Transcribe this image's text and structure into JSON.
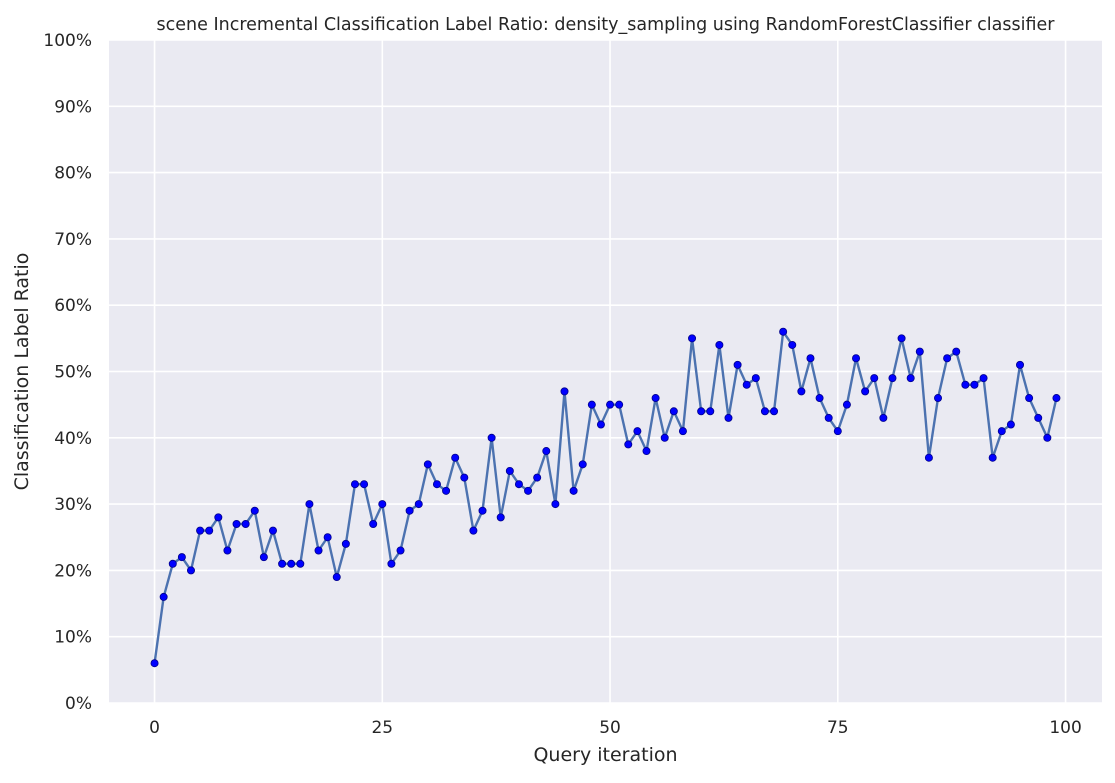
{
  "chart_data": {
    "type": "line",
    "title": "scene Incremental Classification Label Ratio: density_sampling using RandomForestClassifier classifier",
    "xlabel": "Query iteration",
    "ylabel": "Classification Label Ratio",
    "xlim": [
      -5,
      104
    ],
    "ylim": [
      0,
      1
    ],
    "x_ticks": [
      0,
      25,
      50,
      75,
      100
    ],
    "x_tick_labels": [
      "0",
      "25",
      "50",
      "75",
      "100"
    ],
    "y_ticks": [
      0,
      0.1,
      0.2,
      0.3,
      0.4,
      0.5,
      0.6,
      0.7,
      0.8,
      0.9,
      1.0
    ],
    "y_tick_labels": [
      "0%",
      "10%",
      "20%",
      "30%",
      "40%",
      "50%",
      "60%",
      "70%",
      "80%",
      "90%",
      "100%"
    ],
    "grid": true,
    "colors": {
      "background": "#eaeaf2",
      "grid": "#ffffff",
      "line": "#4c72b0",
      "marker": "#0000ff",
      "marker_edge": "#00008b"
    },
    "series": [
      {
        "x": [
          0,
          1,
          2,
          3,
          4,
          5,
          6,
          7,
          8,
          9,
          10,
          11,
          12,
          13,
          14,
          15,
          16,
          17,
          18,
          19,
          20,
          21,
          22,
          23,
          24,
          25,
          26,
          27,
          28,
          29,
          30,
          31,
          32,
          33,
          34,
          35,
          36,
          37,
          38,
          39,
          40,
          41,
          42,
          43,
          44,
          45,
          46,
          47,
          48,
          49,
          50,
          51,
          52,
          53,
          54,
          55,
          56,
          57,
          58,
          59,
          60,
          61,
          62,
          63,
          64,
          65,
          66,
          67,
          68,
          69,
          70,
          71,
          72,
          73,
          74,
          75,
          76,
          77,
          78,
          79,
          80,
          81,
          82,
          83,
          84,
          85,
          86,
          87,
          88,
          89,
          90,
          91,
          92,
          93,
          94,
          95,
          96,
          97,
          98,
          99
        ],
        "values": [
          0.06,
          0.16,
          0.21,
          0.22,
          0.2,
          0.26,
          0.26,
          0.28,
          0.23,
          0.27,
          0.27,
          0.29,
          0.22,
          0.26,
          0.21,
          0.21,
          0.21,
          0.3,
          0.23,
          0.25,
          0.19,
          0.24,
          0.33,
          0.33,
          0.27,
          0.3,
          0.21,
          0.23,
          0.29,
          0.3,
          0.36,
          0.33,
          0.32,
          0.37,
          0.34,
          0.26,
          0.29,
          0.4,
          0.28,
          0.35,
          0.33,
          0.32,
          0.34,
          0.38,
          0.3,
          0.47,
          0.32,
          0.36,
          0.45,
          0.42,
          0.45,
          0.45,
          0.39,
          0.41,
          0.38,
          0.46,
          0.4,
          0.44,
          0.41,
          0.55,
          0.44,
          0.44,
          0.54,
          0.43,
          0.51,
          0.48,
          0.49,
          0.44,
          0.44,
          0.56,
          0.54,
          0.47,
          0.52,
          0.46,
          0.43,
          0.41,
          0.45,
          0.52,
          0.47,
          0.49,
          0.43,
          0.49,
          0.55,
          0.49,
          0.53,
          0.37,
          0.46,
          0.52,
          0.53,
          0.48,
          0.48,
          0.49,
          0.37,
          0.41,
          0.42,
          0.51,
          0.46,
          0.43,
          0.4,
          0.46
        ]
      }
    ]
  }
}
